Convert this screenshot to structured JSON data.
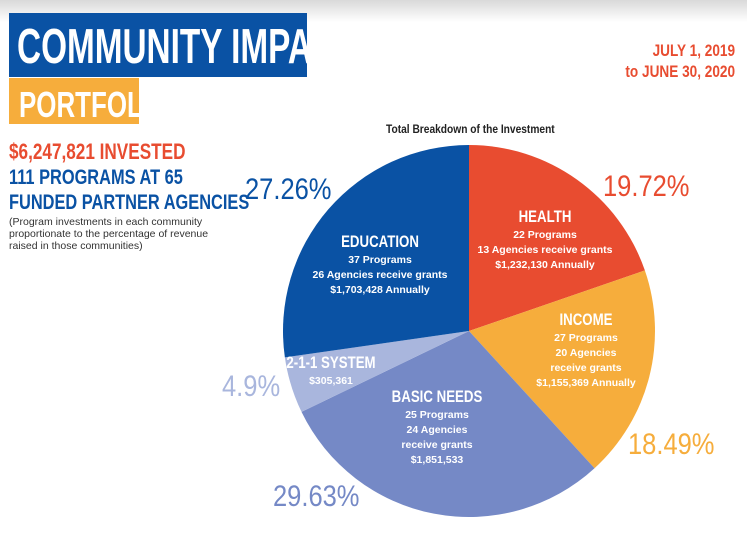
{
  "header": {
    "title": "COMMUNITY IMPACT",
    "subtitle": "PORTFOLIO",
    "date_line1": "JULY 1, 2019",
    "date_line2": "to JUNE 30, 2020"
  },
  "summary": {
    "invested": "$6,247,821 INVESTED",
    "programs_line1": "111 PROGRAMS AT 65",
    "programs_line2": "FUNDED PARTNER AGENCIES",
    "note": "(Program investments in each community proportionate to the percentage of revenue raised in those communities)"
  },
  "colors": {
    "blue": "#0a52a4",
    "orange": "#f6ad3c",
    "red": "#e84c30",
    "basic_needs": "#7589c6",
    "system_211": "#a9b6dd"
  },
  "chart_data": {
    "type": "pie",
    "title": "Total Breakdown of the Investment",
    "start": "12 o'clock, clockwise",
    "slices": [
      {
        "name": "HEALTH",
        "value": 19.72,
        "label": "19.72%",
        "color": "#e84c30",
        "lines": [
          "22 Programs",
          "13 Agencies receive grants",
          "$1,232,130 Annually"
        ]
      },
      {
        "name": "INCOME",
        "value": 18.49,
        "label": "18.49%",
        "color": "#f6ad3c",
        "lines": [
          "27 Programs",
          "20 Agencies",
          "receive grants",
          "$1,155,369 Annually"
        ]
      },
      {
        "name": "BASIC NEEDS",
        "value": 29.63,
        "label": "29.63%",
        "color": "#7589c6",
        "lines": [
          "25 Programs",
          "24 Agencies",
          "receive grants",
          "$1,851,533"
        ]
      },
      {
        "name": "2-1-1 SYSTEM",
        "value": 4.9,
        "label": "4.9%",
        "color": "#a9b6dd",
        "lines": [
          "$305,361"
        ]
      },
      {
        "name": "EDUCATION",
        "value": 27.26,
        "label": "27.26%",
        "color": "#0a52a4",
        "lines": [
          "37 Programs",
          "26 Agencies receive grants",
          "$1,703,428 Annually"
        ]
      }
    ]
  }
}
